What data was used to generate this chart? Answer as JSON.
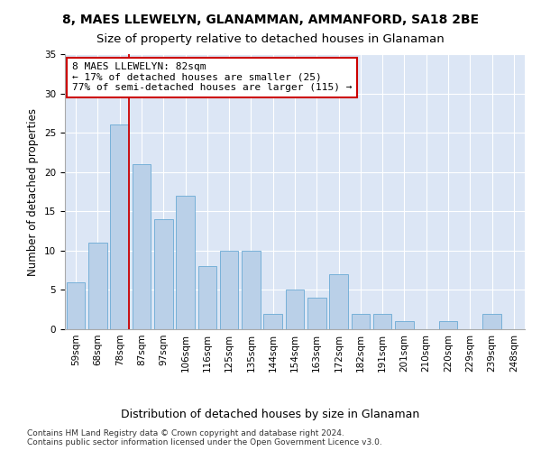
{
  "title": "8, MAES LLEWELYN, GLANAMMAN, AMMANFORD, SA18 2BE",
  "subtitle": "Size of property relative to detached houses in Glanaman",
  "xlabel_bottom": "Distribution of detached houses by size in Glanaman",
  "ylabel": "Number of detached properties",
  "categories": [
    "59sqm",
    "68sqm",
    "78sqm",
    "87sqm",
    "97sqm",
    "106sqm",
    "116sqm",
    "125sqm",
    "135sqm",
    "144sqm",
    "154sqm",
    "163sqm",
    "172sqm",
    "182sqm",
    "191sqm",
    "201sqm",
    "210sqm",
    "220sqm",
    "229sqm",
    "239sqm",
    "248sqm"
  ],
  "values": [
    6,
    11,
    26,
    21,
    14,
    17,
    8,
    10,
    10,
    2,
    5,
    4,
    7,
    2,
    2,
    1,
    0,
    1,
    0,
    2,
    0
  ],
  "bar_color": "#bad0e8",
  "bar_edge_color": "#6aaad4",
  "background_color": "#dce6f5",
  "grid_color": "#ffffff",
  "red_line_index": 2,
  "annotation_text": "8 MAES LLEWELYN: 82sqm\n← 17% of detached houses are smaller (25)\n77% of semi-detached houses are larger (115) →",
  "annotation_box_color": "#ffffff",
  "annotation_box_edge": "#cc0000",
  "ylim": [
    0,
    35
  ],
  "yticks": [
    0,
    5,
    10,
    15,
    20,
    25,
    30,
    35
  ],
  "footnote": "Contains HM Land Registry data © Crown copyright and database right 2024.\nContains public sector information licensed under the Open Government Licence v3.0.",
  "title_fontsize": 10,
  "subtitle_fontsize": 9.5,
  "ylabel_fontsize": 8.5,
  "tick_fontsize": 7.5,
  "annot_fontsize": 8,
  "footnote_fontsize": 6.5
}
